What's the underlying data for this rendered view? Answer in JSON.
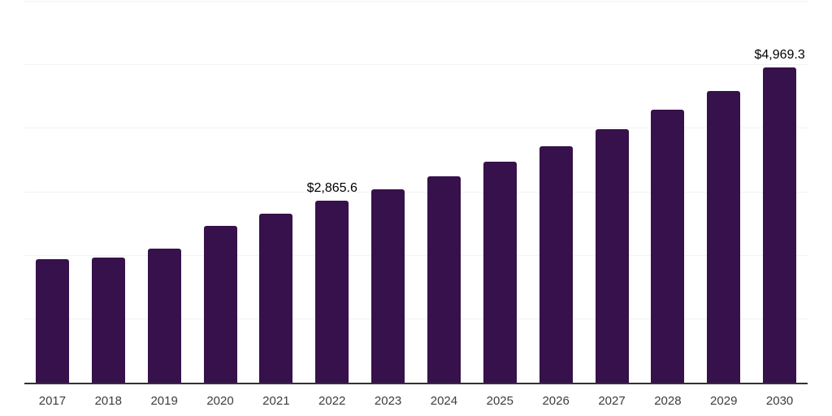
{
  "chart_data": {
    "type": "bar",
    "title": "",
    "xlabel": "",
    "ylabel": "",
    "categories": [
      "2017",
      "2018",
      "2019",
      "2020",
      "2021",
      "2022",
      "2023",
      "2024",
      "2025",
      "2026",
      "2027",
      "2028",
      "2029",
      "2030"
    ],
    "values": [
      1940,
      1975,
      2115,
      2475,
      2665,
      2865.6,
      3045,
      3250,
      3480,
      3720,
      3990,
      4295,
      4590,
      4969.3
    ],
    "data_labels": [
      null,
      null,
      null,
      null,
      null,
      "$2,865.6",
      null,
      null,
      null,
      null,
      null,
      null,
      null,
      "$4,969.3"
    ],
    "ylim": [
      0,
      6000
    ],
    "gridline_step": 1000,
    "grid": "horizontal",
    "legend_position": "none",
    "bar_color": "#36114b",
    "gridline_color": "#f2f2f2",
    "axis_line_color": "#333333",
    "tick_label_color": "#3d3d3d",
    "data_label_color": "#000000"
  }
}
